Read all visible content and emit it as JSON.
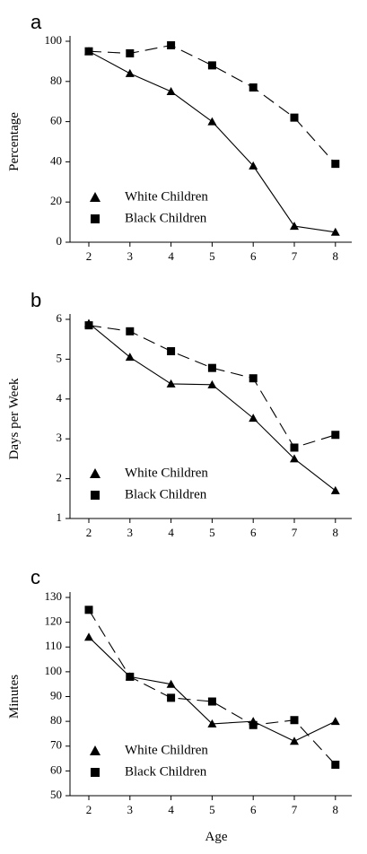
{
  "chart_data": [
    {
      "type": "line",
      "panel_label": "a",
      "ylabel": "Percentage",
      "xlabel": "",
      "x": [
        2,
        3,
        4,
        5,
        6,
        7,
        8
      ],
      "ylim": [
        0,
        100
      ],
      "yticks": [
        0,
        20,
        40,
        60,
        80,
        100
      ],
      "series": [
        {
          "name": "White Children",
          "marker": "triangle",
          "line": "solid",
          "values": [
            95,
            84,
            75,
            60,
            38,
            8,
            5
          ]
        },
        {
          "name": "Black Children",
          "marker": "square",
          "line": "dashed",
          "values": [
            95,
            94,
            98,
            88,
            77,
            62,
            39
          ]
        }
      ],
      "legend": "bottom-left",
      "grid": false
    },
    {
      "type": "line",
      "panel_label": "b",
      "ylabel": "Days per Week",
      "xlabel": "",
      "x": [
        2,
        3,
        4,
        5,
        6,
        7,
        8
      ],
      "ylim": [
        1,
        6
      ],
      "yticks": [
        1,
        2,
        3,
        4,
        5,
        6
      ],
      "series": [
        {
          "name": "White Children",
          "marker": "triangle",
          "line": "solid",
          "values": [
            5.9,
            5.05,
            4.38,
            4.36,
            3.52,
            2.5,
            1.7
          ]
        },
        {
          "name": "Black Children",
          "marker": "square",
          "line": "dashed",
          "values": [
            5.85,
            5.7,
            5.2,
            4.78,
            4.52,
            2.78,
            3.1
          ]
        }
      ],
      "legend": "bottom-left",
      "grid": false
    },
    {
      "type": "line",
      "panel_label": "c",
      "ylabel": "Minutes",
      "xlabel": "Age",
      "x": [
        2,
        3,
        4,
        5,
        6,
        7,
        8
      ],
      "ylim": [
        50,
        130
      ],
      "yticks": [
        50,
        60,
        70,
        80,
        90,
        100,
        110,
        120,
        130
      ],
      "series": [
        {
          "name": "White Children",
          "marker": "triangle",
          "line": "solid",
          "values": [
            114,
            98,
            95,
            79,
            80,
            72,
            80
          ]
        },
        {
          "name": "Black Children",
          "marker": "square",
          "line": "dashed",
          "values": [
            125,
            98,
            89.5,
            88,
            78.5,
            80.5,
            62.5
          ]
        }
      ],
      "legend": "bottom-left",
      "grid": false
    }
  ]
}
